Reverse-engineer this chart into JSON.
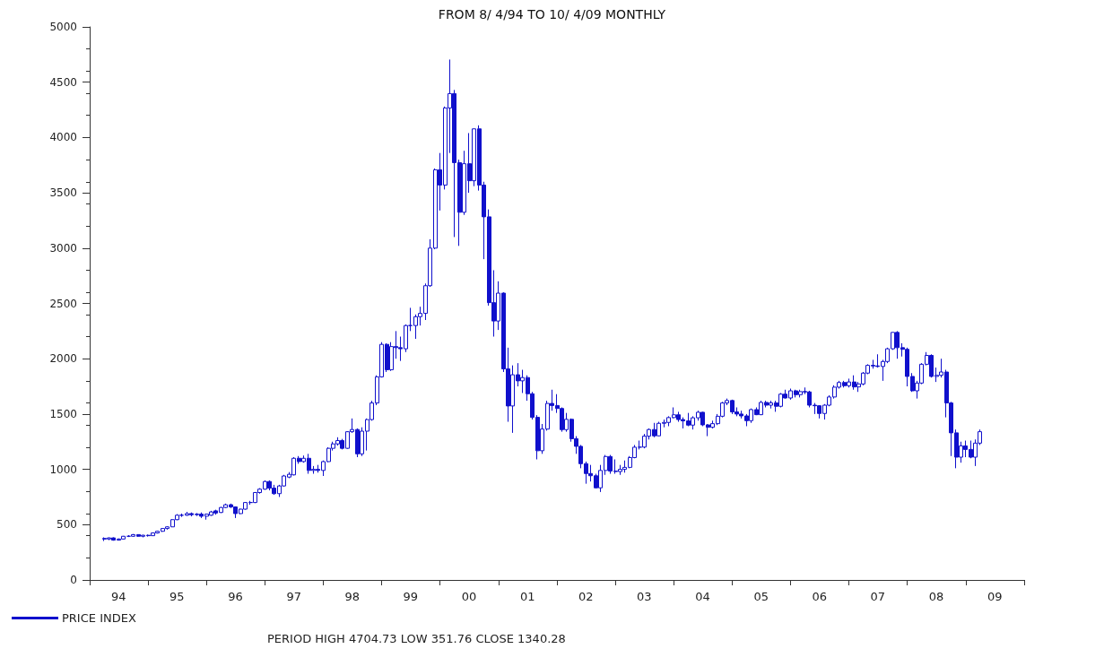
{
  "chart_data": {
    "type": "candlestick",
    "title": "FROM 8/ 4/94 TO 10/ 4/09 MONTHLY",
    "annotations": [
      "PERIOD HIGH 4704.73 LOW 351.76 CLOSE 1340.28"
    ],
    "x": [
      "1994-04",
      "1994-05",
      "1994-06",
      "1994-07",
      "1994-08",
      "1994-09",
      "1994-10",
      "1994-11",
      "1994-12",
      "1995-01",
      "1995-02",
      "1995-03",
      "1995-04",
      "1995-05",
      "1995-06",
      "1995-07",
      "1995-08",
      "1995-09",
      "1995-10",
      "1995-11",
      "1995-12",
      "1996-01",
      "1996-02",
      "1996-03",
      "1996-04",
      "1996-05",
      "1996-06",
      "1996-07",
      "1996-08",
      "1996-09",
      "1996-10",
      "1996-11",
      "1996-12",
      "1997-01",
      "1997-02",
      "1997-03",
      "1997-04",
      "1997-05",
      "1997-06",
      "1997-07",
      "1997-08",
      "1997-09",
      "1997-10",
      "1997-11",
      "1997-12",
      "1998-01",
      "1998-02",
      "1998-03",
      "1998-04",
      "1998-05",
      "1998-06",
      "1998-07",
      "1998-08",
      "1998-09",
      "1998-10",
      "1998-11",
      "1998-12",
      "1999-01",
      "1999-02",
      "1999-03",
      "1999-04",
      "1999-05",
      "1999-06",
      "1999-07",
      "1999-08",
      "1999-09",
      "1999-10",
      "1999-11",
      "1999-12",
      "2000-01",
      "2000-02",
      "2000-03",
      "2000-04",
      "2000-05",
      "2000-06",
      "2000-07",
      "2000-08",
      "2000-09",
      "2000-10",
      "2000-11",
      "2000-12",
      "2001-01",
      "2001-02",
      "2001-03",
      "2001-04",
      "2001-05",
      "2001-06",
      "2001-07",
      "2001-08",
      "2001-09",
      "2001-10",
      "2001-11",
      "2001-12",
      "2002-01",
      "2002-02",
      "2002-03",
      "2002-04",
      "2002-05",
      "2002-06",
      "2002-07",
      "2002-08",
      "2002-09",
      "2002-10",
      "2002-11",
      "2002-12",
      "2003-01",
      "2003-02",
      "2003-03",
      "2003-04",
      "2003-05",
      "2003-06",
      "2003-07",
      "2003-08",
      "2003-09",
      "2003-10",
      "2003-11",
      "2003-12",
      "2004-01",
      "2004-02",
      "2004-03",
      "2004-04",
      "2004-05",
      "2004-06",
      "2004-07",
      "2004-08",
      "2004-09",
      "2004-10",
      "2004-11",
      "2004-12",
      "2005-01",
      "2005-02",
      "2005-03",
      "2005-04",
      "2005-05",
      "2005-06",
      "2005-07",
      "2005-08",
      "2005-09",
      "2005-10",
      "2005-11",
      "2005-12",
      "2006-01",
      "2006-02",
      "2006-03",
      "2006-04",
      "2006-05",
      "2006-06",
      "2006-07",
      "2006-08",
      "2006-09",
      "2006-10",
      "2006-11",
      "2006-12",
      "2007-01",
      "2007-02",
      "2007-03",
      "2007-04",
      "2007-05",
      "2007-06",
      "2007-07",
      "2007-08",
      "2007-09",
      "2007-10",
      "2007-11",
      "2007-12",
      "2008-01",
      "2008-02",
      "2008-03",
      "2008-04",
      "2008-05",
      "2008-06",
      "2008-07",
      "2008-08",
      "2008-09",
      "2008-10",
      "2008-11",
      "2008-12",
      "2009-01",
      "2009-02",
      "2009-03",
      "2009-04"
    ],
    "series": [
      {
        "name": "PRICE INDEX",
        "color": "#1010cc",
        "ohlc": [
          [
            375,
            385,
            351.76,
            370
          ],
          [
            370,
            385,
            360,
            380
          ],
          [
            380,
            385,
            355,
            360
          ],
          [
            360,
            375,
            356,
            370
          ],
          [
            370,
            398,
            368,
            395
          ],
          [
            395,
            405,
            388,
            395
          ],
          [
            395,
            415,
            390,
            410
          ],
          [
            410,
            412,
            390,
            395
          ],
          [
            395,
            408,
            385,
            404
          ],
          [
            404,
            410,
            392,
            400
          ],
          [
            400,
            428,
            398,
            425
          ],
          [
            425,
            445,
            420,
            440
          ],
          [
            440,
            470,
            435,
            465
          ],
          [
            465,
            485,
            455,
            480
          ],
          [
            480,
            550,
            478,
            545
          ],
          [
            545,
            595,
            540,
            585
          ],
          [
            585,
            600,
            570,
            585
          ],
          [
            585,
            615,
            580,
            600
          ],
          [
            600,
            610,
            575,
            590
          ],
          [
            590,
            605,
            578,
            595
          ],
          [
            595,
            610,
            560,
            576
          ],
          [
            576,
            600,
            545,
            595
          ],
          [
            585,
            625,
            580,
            615
          ],
          [
            625,
            635,
            590,
            605
          ],
          [
            610,
            660,
            605,
            655
          ],
          [
            655,
            690,
            650,
            680
          ],
          [
            680,
            690,
            650,
            660
          ],
          [
            660,
            665,
            560,
            600
          ],
          [
            600,
            645,
            595,
            640
          ],
          [
            640,
            705,
            635,
            700
          ],
          [
            700,
            715,
            680,
            700
          ],
          [
            700,
            795,
            695,
            790
          ],
          [
            790,
            830,
            780,
            821
          ],
          [
            821,
            900,
            815,
            890
          ],
          [
            890,
            900,
            810,
            830
          ],
          [
            830,
            860,
            770,
            780
          ],
          [
            780,
            860,
            750,
            850
          ],
          [
            850,
            950,
            845,
            940
          ],
          [
            930,
            975,
            920,
            955
          ],
          [
            950,
            1110,
            945,
            1100
          ],
          [
            1100,
            1120,
            1050,
            1070
          ],
          [
            1070,
            1125,
            1060,
            1100
          ],
          [
            1100,
            1140,
            960,
            990
          ],
          [
            990,
            1030,
            960,
            1000
          ],
          [
            1000,
            1040,
            970,
            990
          ],
          [
            990,
            1080,
            940,
            1070
          ],
          [
            1070,
            1200,
            1065,
            1190
          ],
          [
            1190,
            1250,
            1170,
            1230
          ],
          [
            1230,
            1290,
            1215,
            1260
          ],
          [
            1260,
            1275,
            1180,
            1190
          ],
          [
            1190,
            1345,
            1185,
            1340
          ],
          [
            1340,
            1460,
            1330,
            1360
          ],
          [
            1360,
            1370,
            1110,
            1140
          ],
          [
            1140,
            1380,
            1120,
            1345
          ],
          [
            1345,
            1460,
            1170,
            1450
          ],
          [
            1450,
            1620,
            1440,
            1600
          ],
          [
            1600,
            1850,
            1580,
            1836
          ],
          [
            1836,
            2150,
            1830,
            2130
          ],
          [
            2130,
            2140,
            1880,
            1900
          ],
          [
            1900,
            2150,
            1890,
            2110
          ],
          [
            2110,
            2250,
            2000,
            2100
          ],
          [
            2100,
            2200,
            1980,
            2090
          ],
          [
            2090,
            2310,
            2060,
            2300
          ],
          [
            2300,
            2460,
            2250,
            2300
          ],
          [
            2300,
            2400,
            2180,
            2380
          ],
          [
            2380,
            2470,
            2300,
            2410
          ],
          [
            2410,
            2680,
            2350,
            2660
          ],
          [
            2660,
            3080,
            2650,
            3000
          ],
          [
            3000,
            3720,
            2990,
            3708
          ],
          [
            3708,
            3860,
            3340,
            3570
          ],
          [
            3570,
            4280,
            3530,
            4267
          ],
          [
            4267,
            4704.73,
            3860,
            4397
          ],
          [
            4397,
            4430,
            3100,
            3773
          ],
          [
            3773,
            3800,
            3020,
            3324
          ],
          [
            3324,
            3880,
            3300,
            3763
          ],
          [
            3763,
            4040,
            3500,
            3609
          ],
          [
            3609,
            4080,
            3560,
            4078
          ],
          [
            4078,
            4110,
            3520,
            3570
          ],
          [
            3570,
            3600,
            2900,
            3283
          ],
          [
            3283,
            3350,
            2480,
            2507
          ],
          [
            2507,
            2800,
            2200,
            2341
          ],
          [
            2341,
            2700,
            2260,
            2593
          ],
          [
            2593,
            2600,
            1880,
            1908
          ],
          [
            1908,
            2100,
            1430,
            1573
          ],
          [
            1573,
            1940,
            1330,
            1855
          ],
          [
            1855,
            1960,
            1750,
            1800
          ],
          [
            1800,
            1900,
            1690,
            1830
          ],
          [
            1830,
            1850,
            1620,
            1683
          ],
          [
            1683,
            1700,
            1450,
            1470
          ],
          [
            1470,
            1490,
            1090,
            1168
          ],
          [
            1168,
            1410,
            1140,
            1364
          ],
          [
            1364,
            1620,
            1350,
            1596
          ],
          [
            1596,
            1720,
            1530,
            1577
          ],
          [
            1577,
            1680,
            1510,
            1550
          ],
          [
            1550,
            1560,
            1340,
            1359
          ],
          [
            1359,
            1510,
            1340,
            1452
          ],
          [
            1452,
            1460,
            1250,
            1277
          ],
          [
            1277,
            1300,
            1140,
            1208
          ],
          [
            1208,
            1220,
            1010,
            1051
          ],
          [
            1051,
            1070,
            870,
            962
          ],
          [
            962,
            1040,
            890,
            942
          ],
          [
            942,
            960,
            830,
            833
          ],
          [
            833,
            1040,
            795,
            990
          ],
          [
            990,
            1130,
            950,
            1116
          ],
          [
            1116,
            1130,
            960,
            984
          ],
          [
            984,
            1090,
            960,
            980
          ],
          [
            980,
            1040,
            950,
            1000
          ],
          [
            1000,
            1080,
            970,
            1018
          ],
          [
            1018,
            1120,
            1010,
            1106
          ],
          [
            1106,
            1220,
            1100,
            1200
          ],
          [
            1200,
            1260,
            1180,
            1201
          ],
          [
            1201,
            1320,
            1190,
            1300
          ],
          [
            1300,
            1370,
            1270,
            1360
          ],
          [
            1360,
            1420,
            1290,
            1303
          ],
          [
            1303,
            1430,
            1300,
            1416
          ],
          [
            1416,
            1450,
            1380,
            1424
          ],
          [
            1424,
            1480,
            1390,
            1468
          ],
          [
            1468,
            1560,
            1460,
            1493
          ],
          [
            1493,
            1520,
            1430,
            1450
          ],
          [
            1450,
            1470,
            1370,
            1438
          ],
          [
            1438,
            1510,
            1390,
            1400
          ],
          [
            1400,
            1480,
            1360,
            1466
          ],
          [
            1466,
            1530,
            1440,
            1516
          ],
          [
            1516,
            1520,
            1390,
            1402
          ],
          [
            1402,
            1410,
            1300,
            1380
          ],
          [
            1380,
            1440,
            1370,
            1413
          ],
          [
            1413,
            1500,
            1400,
            1480
          ],
          [
            1480,
            1610,
            1470,
            1600
          ],
          [
            1600,
            1640,
            1580,
            1622
          ],
          [
            1622,
            1630,
            1500,
            1519
          ],
          [
            1519,
            1560,
            1480,
            1500
          ],
          [
            1500,
            1530,
            1460,
            1483
          ],
          [
            1483,
            1500,
            1390,
            1440
          ],
          [
            1440,
            1550,
            1420,
            1540
          ],
          [
            1540,
            1560,
            1490,
            1494
          ],
          [
            1494,
            1620,
            1490,
            1605
          ],
          [
            1605,
            1620,
            1560,
            1580
          ],
          [
            1580,
            1620,
            1550,
            1601
          ],
          [
            1601,
            1620,
            1520,
            1570
          ],
          [
            1570,
            1690,
            1560,
            1680
          ],
          [
            1680,
            1720,
            1640,
            1645
          ],
          [
            1645,
            1730,
            1630,
            1710
          ],
          [
            1710,
            1720,
            1650,
            1675
          ],
          [
            1675,
            1720,
            1650,
            1703
          ],
          [
            1703,
            1740,
            1680,
            1700
          ],
          [
            1700,
            1710,
            1560,
            1580
          ],
          [
            1580,
            1600,
            1500,
            1575
          ],
          [
            1575,
            1580,
            1460,
            1505
          ],
          [
            1505,
            1590,
            1450,
            1580
          ],
          [
            1580,
            1670,
            1570,
            1654
          ],
          [
            1654,
            1760,
            1640,
            1743
          ],
          [
            1743,
            1800,
            1730,
            1785
          ],
          [
            1785,
            1800,
            1740,
            1756
          ],
          [
            1756,
            1820,
            1740,
            1790
          ],
          [
            1790,
            1850,
            1720,
            1745
          ],
          [
            1745,
            1790,
            1700,
            1772
          ],
          [
            1772,
            1880,
            1760,
            1870
          ],
          [
            1870,
            1950,
            1860,
            1940
          ],
          [
            1940,
            1990,
            1910,
            1935
          ],
          [
            1935,
            2040,
            1920,
            1930
          ],
          [
            1930,
            1990,
            1800,
            1975
          ],
          [
            1975,
            2100,
            1960,
            2090
          ],
          [
            2090,
            2240,
            2080,
            2238
          ],
          [
            2238,
            2250,
            2000,
            2100
          ],
          [
            2100,
            2140,
            2020,
            2085
          ],
          [
            2085,
            2100,
            1750,
            1840
          ],
          [
            1840,
            1870,
            1700,
            1710
          ],
          [
            1710,
            1800,
            1640,
            1780
          ],
          [
            1780,
            1960,
            1770,
            1950
          ],
          [
            1950,
            2060,
            1940,
            2030
          ],
          [
            2030,
            2040,
            1830,
            1840
          ],
          [
            1840,
            1920,
            1790,
            1850
          ],
          [
            1850,
            2000,
            1830,
            1880
          ],
          [
            1880,
            1900,
            1470,
            1600
          ],
          [
            1600,
            1610,
            1120,
            1330
          ],
          [
            1330,
            1360,
            1010,
            1110
          ],
          [
            1110,
            1250,
            1060,
            1212
          ],
          [
            1212,
            1260,
            1110,
            1180
          ],
          [
            1180,
            1260,
            1100,
            1110
          ],
          [
            1110,
            1270,
            1030,
            1237
          ],
          [
            1237,
            1360,
            1220,
            1340.28
          ]
        ]
      }
    ],
    "xlim": [
      "1994-01",
      "2010-01"
    ],
    "xticks": [
      {
        "value": "1994-01",
        "label": null
      },
      {
        "value": "1994-07",
        "label": "94"
      },
      {
        "value": "1995-01",
        "label": null
      },
      {
        "value": "1995-07",
        "label": "95"
      },
      {
        "value": "1996-01",
        "label": null
      },
      {
        "value": "1996-07",
        "label": "96"
      },
      {
        "value": "1997-01",
        "label": null
      },
      {
        "value": "1997-07",
        "label": "97"
      },
      {
        "value": "1998-01",
        "label": null
      },
      {
        "value": "1998-07",
        "label": "98"
      },
      {
        "value": "1999-01",
        "label": null
      },
      {
        "value": "1999-07",
        "label": "99"
      },
      {
        "value": "2000-01",
        "label": null
      },
      {
        "value": "2000-07",
        "label": "00"
      },
      {
        "value": "2001-01",
        "label": null
      },
      {
        "value": "2001-07",
        "label": "01"
      },
      {
        "value": "2002-01",
        "label": null
      },
      {
        "value": "2002-07",
        "label": "02"
      },
      {
        "value": "2003-01",
        "label": null
      },
      {
        "value": "2003-07",
        "label": "03"
      },
      {
        "value": "2004-01",
        "label": null
      },
      {
        "value": "2004-07",
        "label": "04"
      },
      {
        "value": "2005-01",
        "label": null
      },
      {
        "value": "2005-07",
        "label": "05"
      },
      {
        "value": "2006-01",
        "label": null
      },
      {
        "value": "2006-07",
        "label": "06"
      },
      {
        "value": "2007-01",
        "label": null
      },
      {
        "value": "2007-07",
        "label": "07"
      },
      {
        "value": "2008-01",
        "label": null
      },
      {
        "value": "2008-07",
        "label": "08"
      },
      {
        "value": "2009-01",
        "label": null
      },
      {
        "value": "2009-07",
        "label": "09"
      },
      {
        "value": "2010-01",
        "label": null
      }
    ],
    "ylim": [
      0,
      5000
    ],
    "yticks": [
      0,
      500,
      1000,
      1500,
      2000,
      2500,
      3000,
      3500,
      4000,
      4500,
      5000
    ],
    "grid": false,
    "legend": "bottom left"
  }
}
